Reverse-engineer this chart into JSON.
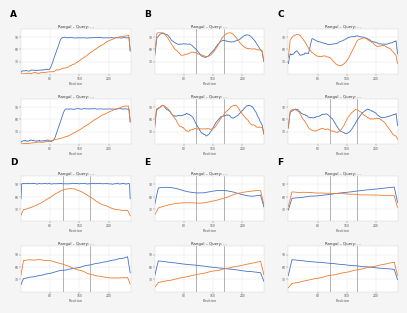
{
  "background_color": "#f5f5f5",
  "plot_bg": "#ffffff",
  "line_blue": "#4472c4",
  "line_orange": "#ed7d31",
  "grid_color": "#e0e0e0",
  "spine_color": "#cccccc",
  "title_color": "#333333",
  "label_color": "#555555",
  "panel_label_color": "#000000",
  "title_fs": 2.8,
  "tick_fs": 2.2,
  "xlabel_fs": 2.5,
  "panel_label_fs": 6.5,
  "lw": 0.6,
  "n": 300
}
